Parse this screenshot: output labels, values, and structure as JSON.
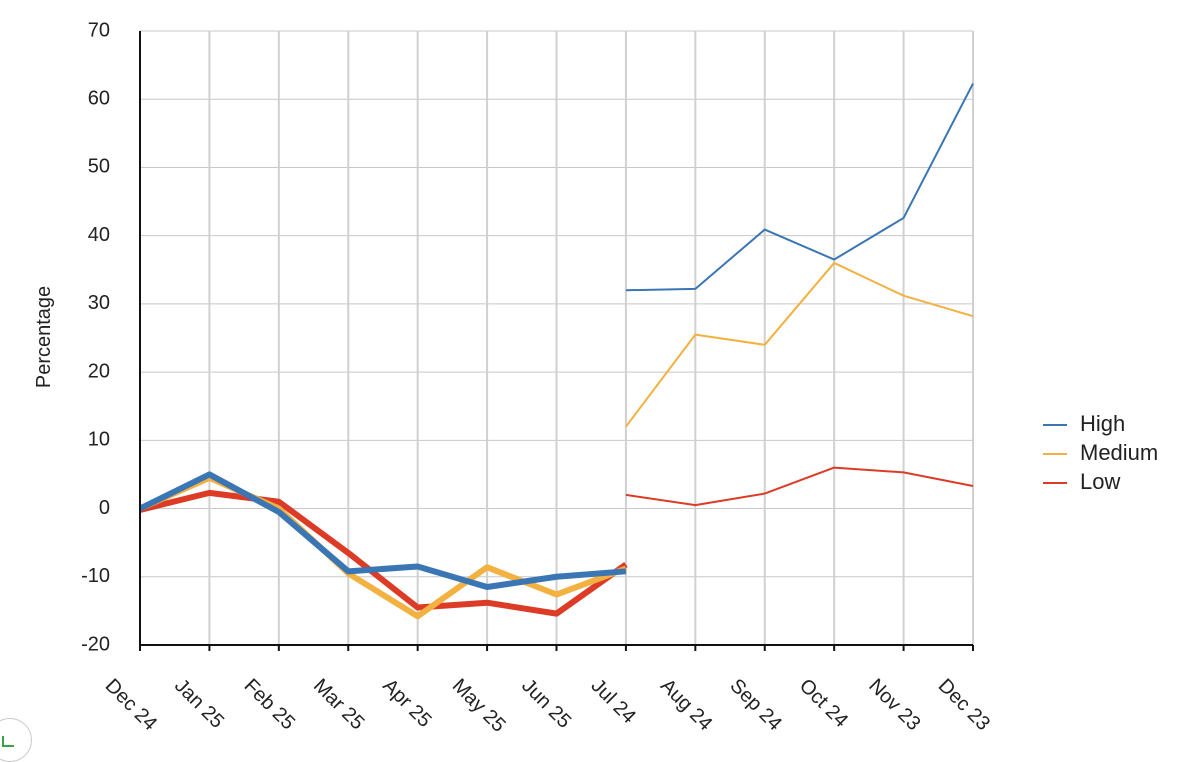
{
  "chart_data": {
    "type": "line",
    "title": "",
    "xlabel": "",
    "ylabel": "Percentage",
    "ylim": [
      -20,
      70
    ],
    "yticks": [
      70,
      60,
      50,
      40,
      30,
      20,
      10,
      0,
      -10,
      -20
    ],
    "categories": [
      "Dec 24",
      "Jan 25",
      "Feb 25",
      "Mar 25",
      "Apr 25",
      "May 25",
      "Jun 25",
      "Jul 24",
      "Aug 24",
      "Sep 24",
      "Oct 24",
      "Nov 23",
      "Dec 23"
    ],
    "grid": true,
    "legend_position": "right",
    "series": [
      {
        "name": "High",
        "color": "#3a76b4",
        "values": [
          0,
          5,
          -0.5,
          -9.2,
          -8.5,
          -11.5,
          -10,
          -9.2,
          null,
          null,
          null,
          null,
          null
        ]
      },
      {
        "name": "Medium",
        "color": "#f2b140",
        "values": [
          0,
          4.5,
          0,
          -9.5,
          -15.8,
          -8.6,
          -12.6,
          -8.8,
          null,
          null,
          null,
          null,
          null
        ]
      },
      {
        "name": "Low",
        "color": "#dc3b26",
        "values": [
          -0.2,
          2.3,
          1,
          -6.5,
          -14.5,
          -13.8,
          -15.4,
          -8.2,
          null,
          null,
          null,
          null,
          null
        ]
      },
      {
        "name": "High",
        "color": "#3a76b4",
        "values": [
          null,
          null,
          null,
          null,
          null,
          null,
          null,
          32,
          32.2,
          40.9,
          36.5,
          42.6,
          62.3
        ]
      },
      {
        "name": "Medium",
        "color": "#f2b140",
        "values": [
          null,
          null,
          null,
          null,
          null,
          null,
          null,
          12,
          25.5,
          24,
          36,
          31.2,
          28.2
        ]
      },
      {
        "name": "Low",
        "color": "#dc3b26",
        "values": [
          null,
          null,
          null,
          null,
          null,
          null,
          null,
          2,
          0.5,
          2.2,
          6,
          5.3,
          3.3
        ]
      }
    ],
    "legend": [
      {
        "label": "High",
        "color": "#3a76b4"
      },
      {
        "label": "Medium",
        "color": "#f2b140"
      },
      {
        "label": "Low",
        "color": "#dc3b26"
      }
    ]
  }
}
